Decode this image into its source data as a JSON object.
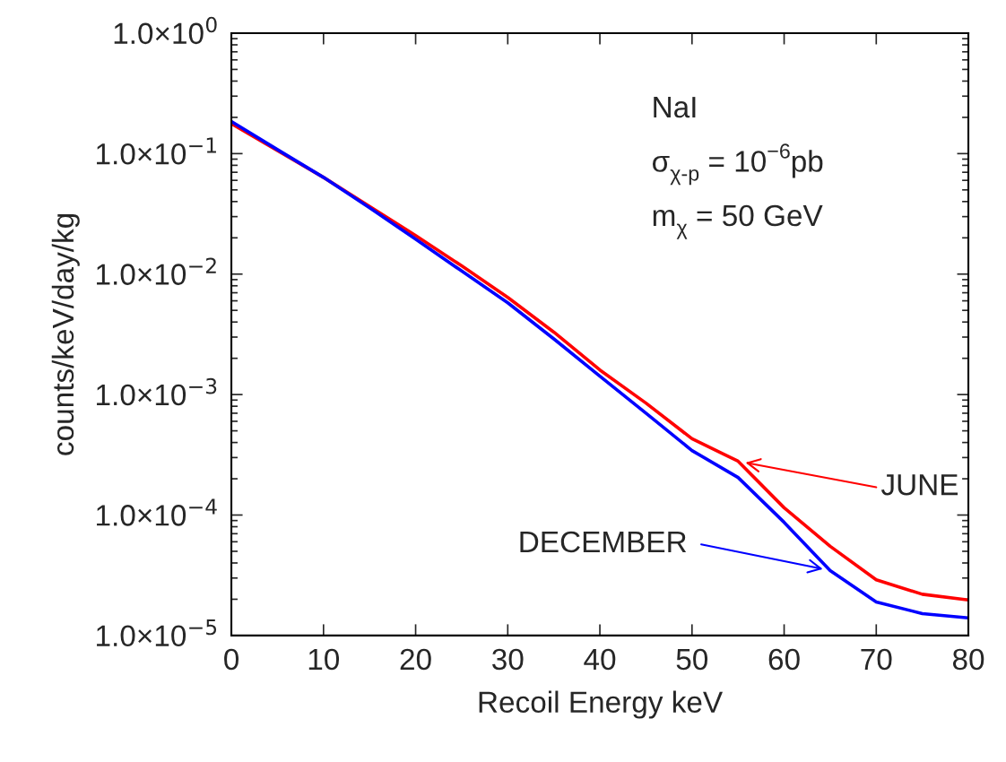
{
  "chart_data": {
    "type": "line",
    "xlabel": "Recoil Energy keV",
    "ylabel": "counts/keV/day/kg",
    "x": [
      0,
      5,
      10,
      15,
      20,
      25,
      30,
      35,
      40,
      45,
      50,
      55,
      60,
      65,
      70,
      75,
      80
    ],
    "series": [
      {
        "name": "JUNE",
        "color": "#ff0000",
        "values": [
          0.177,
          0.106,
          0.0635,
          0.0365,
          0.0209,
          0.0117,
          0.0064,
          0.0033,
          0.0016,
          0.00085,
          0.00043,
          0.00028,
          0.000115,
          5.5e-05,
          2.9e-05,
          2.2e-05,
          1.97e-05
        ]
      },
      {
        "name": "DECEMBER",
        "color": "#0000ff",
        "values": [
          0.185,
          0.108,
          0.0635,
          0.0355,
          0.0195,
          0.0106,
          0.00578,
          0.0029,
          0.00142,
          0.0007,
          0.000343,
          0.000205,
          8.7e-05,
          3.46e-05,
          1.9e-05,
          1.52e-05,
          1.4e-05
        ]
      }
    ],
    "log": "y",
    "xlim": [
      0,
      80
    ],
    "xticks": [
      0,
      10,
      20,
      30,
      40,
      50,
      60,
      70,
      80
    ],
    "ylim": [
      1e-05,
      1
    ],
    "yticks": [
      {
        "value": 1e-05,
        "label": "1.0×10$^{−5}$"
      },
      {
        "value": 0.0001,
        "label": "1.0×10$^{−4}$"
      },
      {
        "value": 0.001,
        "label": "1.0×10$^{−3}$"
      },
      {
        "value": 0.01,
        "label": "1.0×10$^{−2}$"
      },
      {
        "value": 0.1,
        "label": "1.0×10$^{−1}$"
      },
      {
        "value": 1,
        "label": "1.0×10$^{0}$"
      }
    ],
    "grid": false,
    "legend": "bottom right",
    "marker": "none",
    "line_style": "solid",
    "annotations": [
      "NaI",
      "σ$_{χ-p}$ = 10$^{−6}$pb",
      "m$_{χ}$ = 50 GeV"
    ]
  }
}
